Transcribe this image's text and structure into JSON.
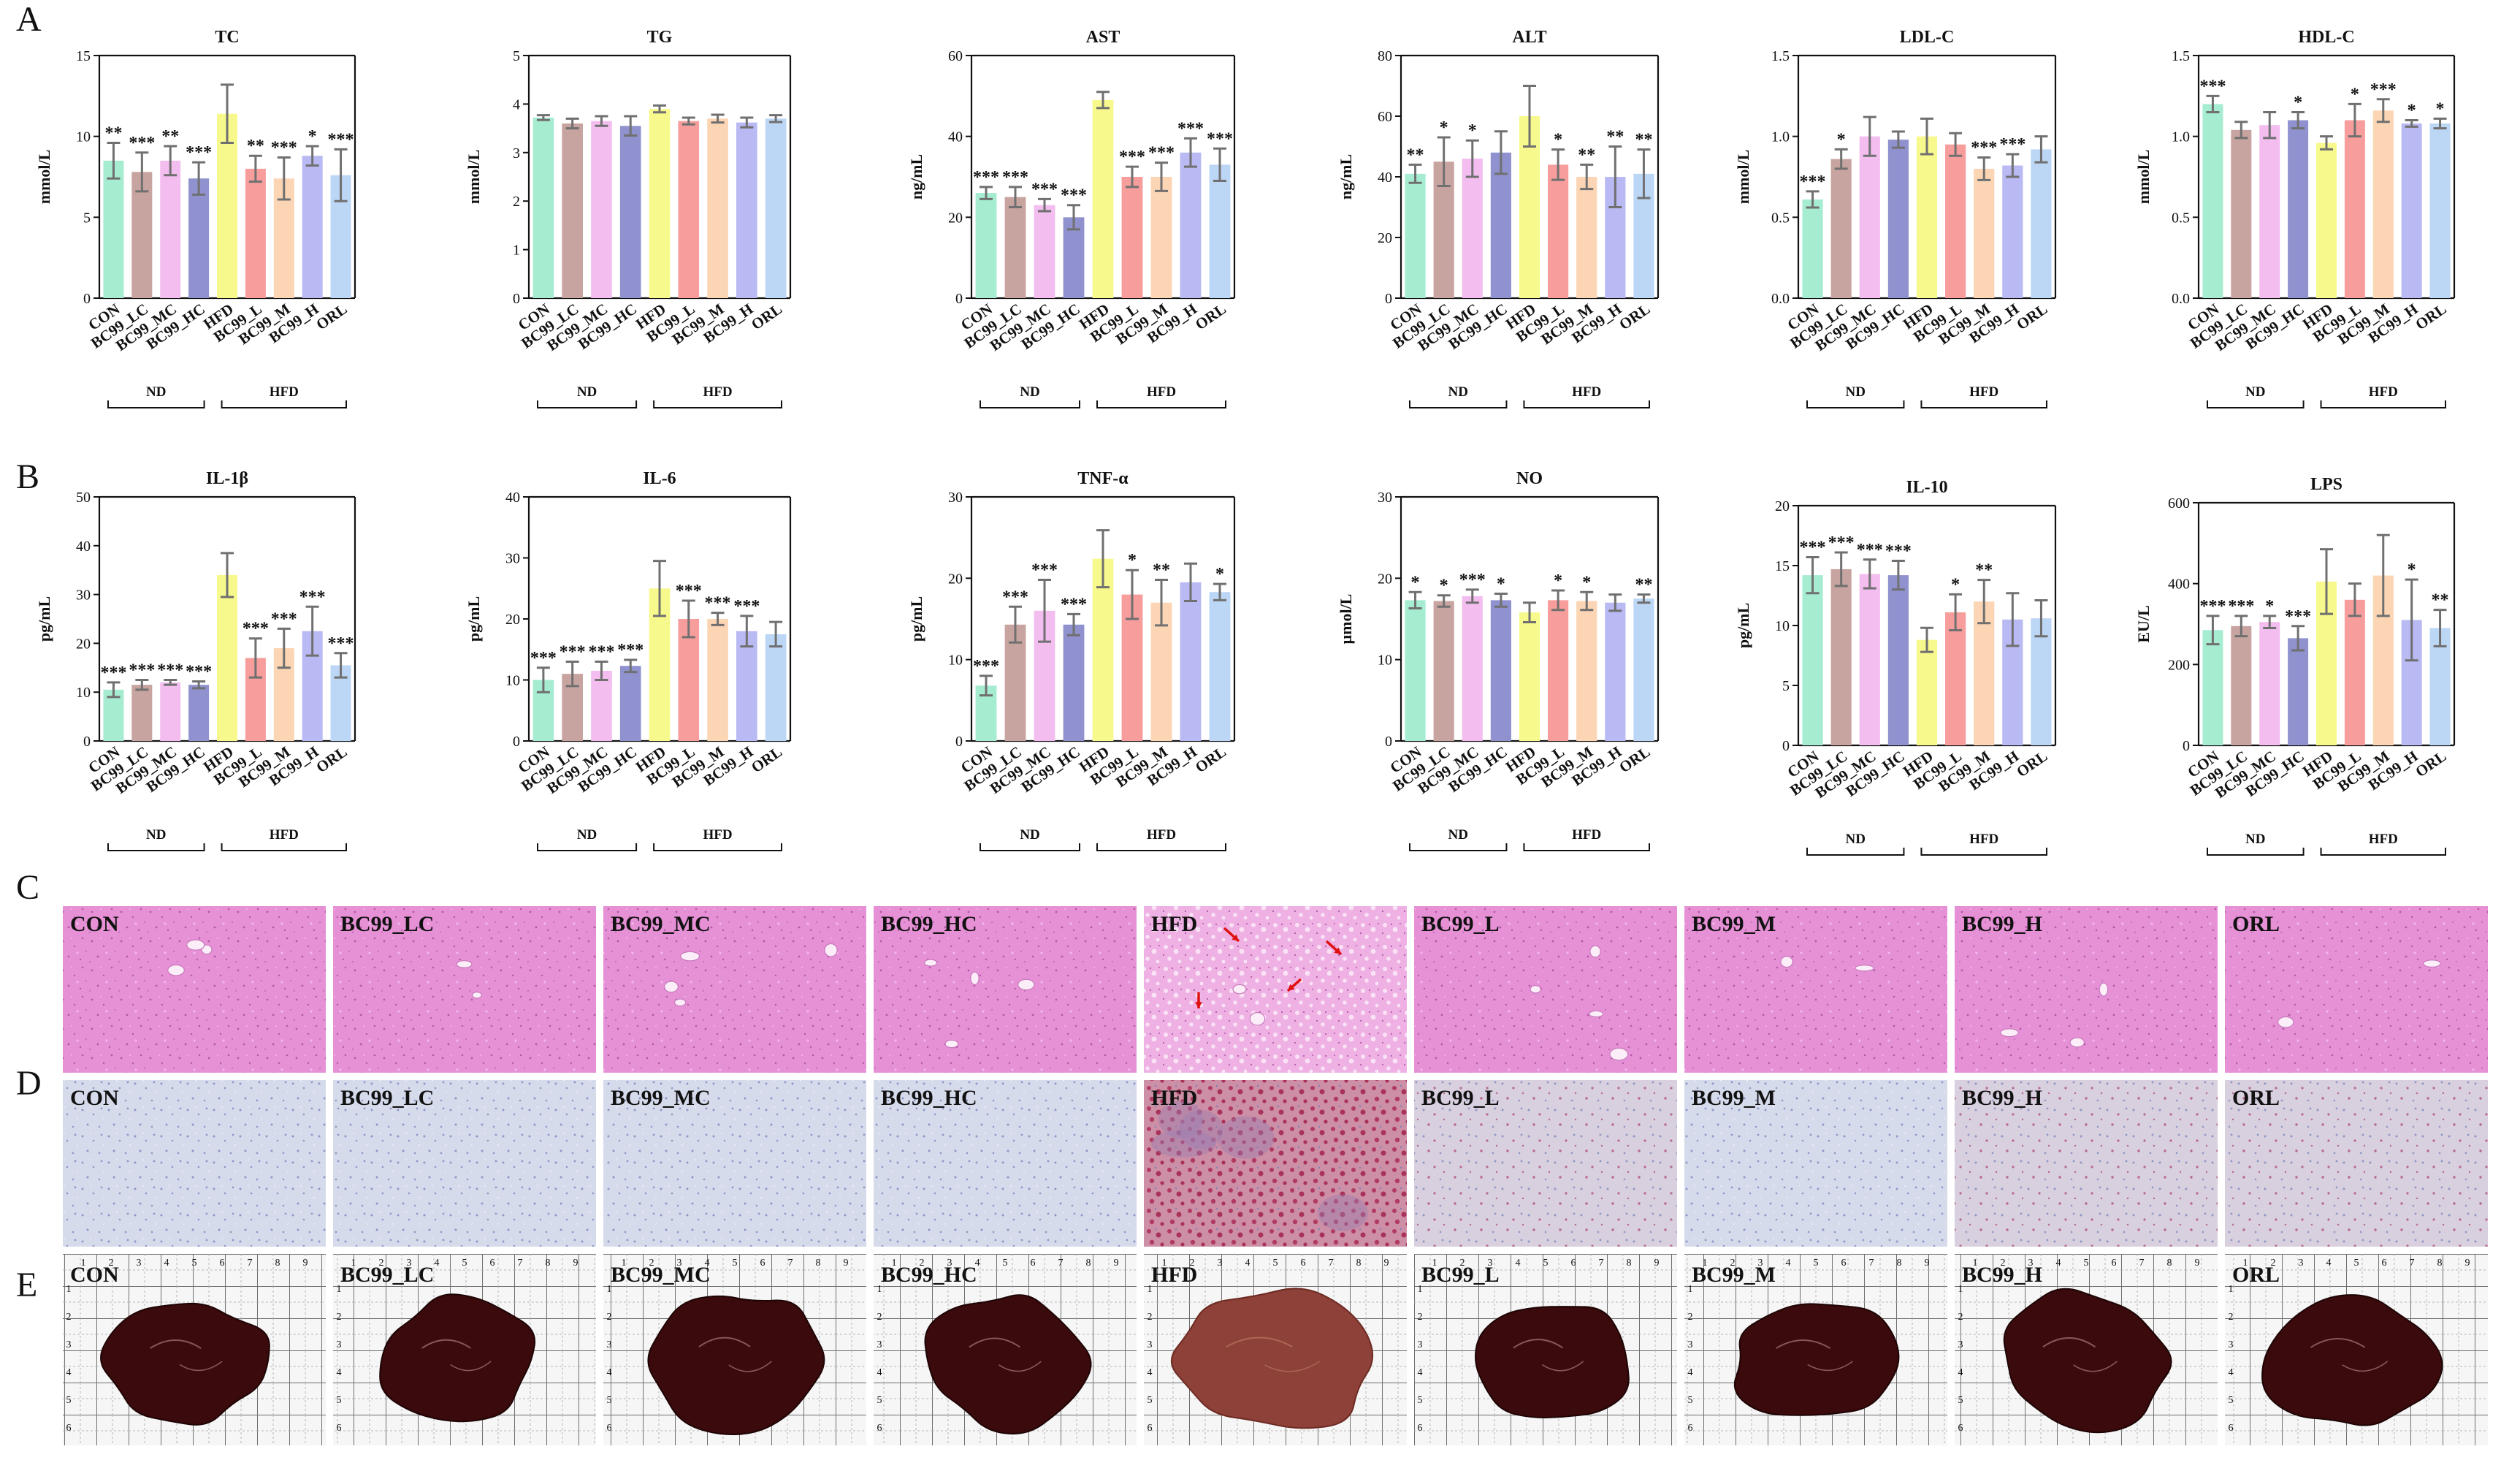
{
  "panel_letters": [
    "A",
    "B",
    "C",
    "D",
    "E"
  ],
  "groups": [
    "CON",
    "BC99_LC",
    "BC99_MC",
    "BC99_HC",
    "HFD",
    "BC99_L",
    "BC99_M",
    "BC99_H",
    "ORL"
  ],
  "group_brackets": [
    {
      "label": "ND",
      "from": 0,
      "to": 3
    },
    {
      "label": "HFD",
      "from": 4,
      "to": 8
    }
  ],
  "colors": {
    "bars": [
      "#a6ecd1",
      "#c8a4a0",
      "#f4bdef",
      "#8f92cf",
      "#f8f98d",
      "#f79e9c",
      "#fcd5b4",
      "#b9b9f4",
      "#bcd6f6"
    ],
    "error_bar": "#707070",
    "he_stain": "#e78fd6",
    "oil_red_base": "#d7dbea",
    "oil_red_lipid": "#bb4a6c",
    "liver_dark": "#3a0a0c",
    "liver_hfd": "#8d4138"
  },
  "chart_data": [
    {
      "type": "bar",
      "title": "TC",
      "ylabel": "mmol/L",
      "ylim": [
        0,
        15
      ],
      "yticks": [
        0,
        5,
        10,
        15
      ],
      "categories": [
        "CON",
        "BC99_LC",
        "BC99_MC",
        "BC99_HC",
        "HFD",
        "BC99_L",
        "BC99_M",
        "BC99_H",
        "ORL"
      ],
      "values": [
        8.5,
        7.8,
        8.5,
        7.4,
        11.4,
        8.0,
        7.4,
        8.8,
        7.6
      ],
      "errors": [
        1.1,
        1.2,
        0.9,
        1.0,
        1.8,
        0.8,
        1.3,
        0.6,
        1.6
      ],
      "significance": [
        "**",
        "***",
        "**",
        "***",
        "",
        "**",
        "***",
        "*",
        "***"
      ]
    },
    {
      "type": "bar",
      "title": "TG",
      "ylabel": "mmol/L",
      "ylim": [
        0,
        5
      ],
      "yticks": [
        0,
        1,
        2,
        3,
        4,
        5
      ],
      "categories": [
        "CON",
        "BC99_LC",
        "BC99_MC",
        "BC99_HC",
        "HFD",
        "BC99_L",
        "BC99_M",
        "BC99_H",
        "ORL"
      ],
      "values": [
        3.72,
        3.6,
        3.65,
        3.55,
        3.9,
        3.65,
        3.7,
        3.62,
        3.7
      ],
      "errors": [
        0.05,
        0.1,
        0.1,
        0.2,
        0.07,
        0.07,
        0.08,
        0.1,
        0.07
      ],
      "significance": [
        "",
        "",
        "",
        "",
        "",
        "",
        "",
        "",
        ""
      ]
    },
    {
      "type": "bar",
      "title": "AST",
      "ylabel": "ng/mL",
      "ylim": [
        0,
        60
      ],
      "yticks": [
        0,
        20,
        40,
        60
      ],
      "categories": [
        "CON",
        "BC99_LC",
        "BC99_MC",
        "BC99_HC",
        "HFD",
        "BC99_L",
        "BC99_M",
        "BC99_H",
        "ORL"
      ],
      "values": [
        26,
        25,
        23,
        20,
        49,
        30,
        30,
        36,
        33
      ],
      "errors": [
        1.5,
        2.5,
        1.5,
        3,
        2,
        2.5,
        3.5,
        3.5,
        4
      ],
      "significance": [
        "***",
        "***",
        "***",
        "***",
        "",
        "***",
        "***",
        "***",
        "***"
      ]
    },
    {
      "type": "bar",
      "title": "ALT",
      "ylabel": "ng/mL",
      "ylim": [
        0,
        80
      ],
      "yticks": [
        0,
        20,
        40,
        60,
        80
      ],
      "categories": [
        "CON",
        "BC99_LC",
        "BC99_MC",
        "BC99_HC",
        "HFD",
        "BC99_L",
        "BC99_M",
        "BC99_H",
        "ORL"
      ],
      "values": [
        41,
        45,
        46,
        48,
        60,
        44,
        40,
        40,
        41
      ],
      "errors": [
        3,
        8,
        6,
        7,
        10,
        5,
        4,
        10,
        8
      ],
      "significance": [
        "**",
        "*",
        "*",
        "",
        "",
        "*",
        "**",
        "**",
        "**"
      ]
    },
    {
      "type": "bar",
      "title": "LDL-C",
      "ylabel": "mmol/L",
      "ylim": [
        0,
        1.5
      ],
      "yticks": [
        "0.0",
        "0.5",
        "1.0",
        "1.5"
      ],
      "categories": [
        "CON",
        "BC99_LC",
        "BC99_MC",
        "BC99_HC",
        "HFD",
        "BC99_L",
        "BC99_M",
        "BC99_H",
        "ORL"
      ],
      "values": [
        0.61,
        0.86,
        1.0,
        0.98,
        1.0,
        0.95,
        0.8,
        0.82,
        0.92
      ],
      "errors": [
        0.05,
        0.06,
        0.12,
        0.05,
        0.11,
        0.07,
        0.07,
        0.07,
        0.08
      ],
      "significance": [
        "***",
        "*",
        "",
        "",
        "",
        "",
        "***",
        "***",
        ""
      ]
    },
    {
      "type": "bar",
      "title": "HDL-C",
      "ylabel": "mmol/L",
      "ylim": [
        0,
        1.5
      ],
      "yticks": [
        "0.0",
        "0.5",
        "1.0",
        "1.5"
      ],
      "categories": [
        "CON",
        "BC99_LC",
        "BC99_MC",
        "BC99_HC",
        "HFD",
        "BC99_L",
        "BC99_M",
        "BC99_H",
        "ORL"
      ],
      "values": [
        1.2,
        1.04,
        1.07,
        1.1,
        0.96,
        1.1,
        1.16,
        1.08,
        1.08
      ],
      "errors": [
        0.05,
        0.05,
        0.08,
        0.05,
        0.04,
        0.1,
        0.07,
        0.02,
        0.03
      ],
      "significance": [
        "***",
        "",
        "",
        "*",
        "",
        "*",
        "***",
        "*",
        "*"
      ]
    },
    {
      "type": "bar",
      "title": "IL-1β",
      "ylabel": "pg/mL",
      "ylim": [
        0,
        50
      ],
      "yticks": [
        0,
        10,
        20,
        30,
        40,
        50
      ],
      "categories": [
        "CON",
        "BC99_LC",
        "BC99_MC",
        "BC99_HC",
        "HFD",
        "BC99_L",
        "BC99_M",
        "BC99_H",
        "ORL"
      ],
      "values": [
        10.5,
        11.5,
        12,
        11.5,
        34,
        17,
        19,
        22.5,
        15.5
      ],
      "errors": [
        1.5,
        1,
        0.5,
        0.7,
        4.5,
        4,
        4,
        5,
        2.5
      ],
      "significance": [
        "***",
        "***",
        "***",
        "***",
        "",
        "***",
        "***",
        "***",
        "***"
      ]
    },
    {
      "type": "bar",
      "title": "IL-6",
      "ylabel": "pg/mL",
      "ylim": [
        0,
        40
      ],
      "yticks": [
        0,
        10,
        20,
        30,
        40
      ],
      "categories": [
        "CON",
        "BC99_LC",
        "BC99_MC",
        "BC99_HC",
        "HFD",
        "BC99_L",
        "BC99_M",
        "BC99_H",
        "ORL"
      ],
      "values": [
        10,
        11,
        11.5,
        12.3,
        25,
        20,
        20,
        18,
        17.5
      ],
      "errors": [
        2,
        2,
        1.5,
        1,
        4.5,
        3,
        1,
        2.5,
        2
      ],
      "significance": [
        "***",
        "***",
        "***",
        "***",
        "",
        "***",
        "***",
        "***",
        ""
      ]
    },
    {
      "type": "bar",
      "title": "TNF-α",
      "ylabel": "pg/mL",
      "ylim": [
        0,
        30
      ],
      "yticks": [
        0,
        10,
        20,
        30
      ],
      "categories": [
        "CON",
        "BC99_LC",
        "BC99_MC",
        "BC99_HC",
        "HFD",
        "BC99_L",
        "BC99_M",
        "BC99_H",
        "ORL"
      ],
      "values": [
        6.8,
        14.3,
        16,
        14.3,
        22.4,
        18,
        17,
        19.5,
        18.3
      ],
      "errors": [
        1.2,
        2.2,
        3.8,
        1.3,
        3.5,
        3,
        2.8,
        2.3,
        1
      ],
      "significance": [
        "***",
        "***",
        "***",
        "***",
        "",
        "*",
        "**",
        "",
        "*"
      ]
    },
    {
      "type": "bar",
      "title": "NO",
      "ylabel": "μmol/L",
      "ylim": [
        0,
        30
      ],
      "yticks": [
        0,
        10,
        20,
        30
      ],
      "categories": [
        "CON",
        "BC99_LC",
        "BC99_MC",
        "BC99_HC",
        "HFD",
        "BC99_L",
        "BC99_M",
        "BC99_H",
        "ORL"
      ],
      "values": [
        17.3,
        17.2,
        17.8,
        17.3,
        15.8,
        17.3,
        17.2,
        17.0,
        17.5
      ],
      "errors": [
        1,
        0.7,
        0.8,
        0.8,
        1.2,
        1.2,
        1.1,
        1.0,
        0.5
      ],
      "significance": [
        "*",
        "*",
        "***",
        "*",
        "",
        "*",
        "*",
        "",
        "**"
      ]
    },
    {
      "type": "bar",
      "title": "IL-10",
      "ylabel": "pg/mL",
      "ylim": [
        0,
        20
      ],
      "yticks": [
        0,
        5,
        10,
        15,
        20
      ],
      "categories": [
        "CON",
        "BC99_LC",
        "BC99_MC",
        "BC99_HC",
        "HFD",
        "BC99_L",
        "BC99_M",
        "BC99_H",
        "ORL"
      ],
      "values": [
        14.2,
        14.7,
        14.3,
        14.2,
        8.8,
        11.1,
        12,
        10.5,
        10.6
      ],
      "errors": [
        1.5,
        1.4,
        1.2,
        1.2,
        1,
        1.5,
        1.8,
        2.2,
        1.5
      ],
      "significance": [
        "***",
        "***",
        "***",
        "***",
        "",
        "*",
        "**",
        "",
        ""
      ]
    },
    {
      "type": "bar",
      "title": "LPS",
      "ylabel": "EU/L",
      "ylim": [
        0,
        600
      ],
      "yticks": [
        0,
        200,
        400,
        600
      ],
      "categories": [
        "CON",
        "BC99_LC",
        "BC99_MC",
        "BC99_HC",
        "HFD",
        "BC99_L",
        "BC99_M",
        "BC99_H",
        "ORL"
      ],
      "values": [
        285,
        295,
        305,
        265,
        405,
        360,
        420,
        310,
        290
      ],
      "errors": [
        35,
        25,
        15,
        30,
        80,
        40,
        100,
        100,
        45
      ],
      "significance": [
        "***",
        "***",
        "*",
        "***",
        "",
        "",
        "",
        "*",
        "**"
      ]
    }
  ],
  "image_rows": [
    {
      "letter": "C",
      "kind": "he",
      "labels": [
        "CON",
        "BC99_LC",
        "BC99_MC",
        "BC99_HC",
        "HFD",
        "BC99_L",
        "BC99_M",
        "BC99_H",
        "ORL"
      ]
    },
    {
      "letter": "D",
      "kind": "oil",
      "labels": [
        "CON",
        "BC99_LC",
        "BC99_MC",
        "BC99_HC",
        "HFD",
        "BC99_L",
        "BC99_M",
        "BC99_H",
        "ORL"
      ]
    },
    {
      "letter": "E",
      "kind": "liver",
      "labels": [
        "CON",
        "BC99_LC",
        "BC99_MC",
        "BC99_HC",
        "HFD",
        "BC99_L",
        "BC99_M",
        "BC99_H",
        "ORL"
      ]
    }
  ],
  "ruler_numbers": [
    "1",
    "2",
    "3",
    "4",
    "5",
    "6",
    "7",
    "8",
    "9"
  ]
}
